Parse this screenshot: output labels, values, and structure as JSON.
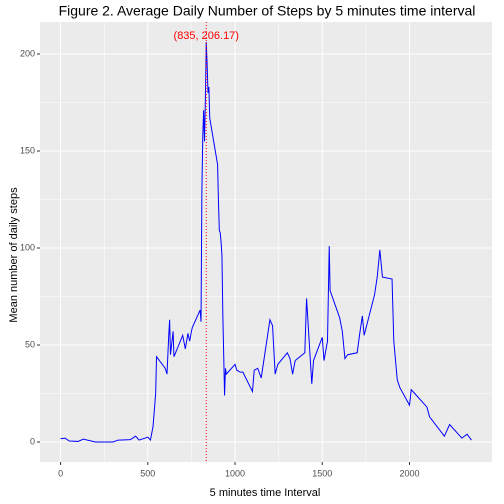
{
  "chart_data": {
    "type": "line",
    "title": "Figure 2. Average Daily Number of Steps by 5 minutes time interval",
    "x_label": "5 minutes time Interval",
    "y_label": "Mean number of daily steps",
    "x": [
      0,
      25,
      50,
      100,
      130,
      200,
      300,
      330,
      400,
      430,
      450,
      500,
      515,
      530,
      545,
      550,
      600,
      610,
      620,
      625,
      630,
      645,
      650,
      700,
      715,
      730,
      740,
      750,
      755,
      800,
      805,
      810,
      815,
      820,
      825,
      830,
      835,
      840,
      845,
      850,
      855,
      900,
      905,
      910,
      915,
      920,
      925,
      930,
      935,
      940,
      945,
      950,
      1000,
      1010,
      1030,
      1045,
      1100,
      1110,
      1130,
      1150,
      1200,
      1215,
      1230,
      1245,
      1300,
      1315,
      1330,
      1345,
      1400,
      1410,
      1440,
      1450,
      1500,
      1510,
      1530,
      1540,
      1545,
      1600,
      1615,
      1630,
      1645,
      1700,
      1715,
      1730,
      1740,
      1800,
      1815,
      1830,
      1845,
      1900,
      1910,
      1930,
      1945,
      2000,
      2010,
      2030,
      2100,
      2115,
      2200,
      2230,
      2300,
      2330,
      2355
    ],
    "values": [
      1.7,
      2,
      0.5,
      0.3,
      1.5,
      0,
      0,
      1,
      1.2,
      3,
      1,
      2.5,
      1,
      8,
      25,
      44,
      38,
      35,
      55,
      63,
      45,
      57,
      44,
      55,
      48,
      56,
      52,
      57,
      59,
      68,
      62,
      130,
      157,
      171,
      155,
      177,
      206.17,
      195,
      180,
      183,
      167,
      143,
      124,
      109,
      108,
      103,
      96,
      66,
      45,
      24,
      38,
      35,
      40,
      37,
      36,
      36,
      26,
      37,
      38,
      33,
      63,
      60,
      35,
      40,
      46,
      43,
      35,
      42,
      46,
      74,
      30,
      42,
      54,
      42,
      52,
      101,
      78,
      64,
      57,
      43,
      45,
      46,
      56,
      65,
      55,
      76,
      85,
      99,
      85,
      84,
      52,
      32,
      28,
      19,
      27,
      25,
      18,
      13,
      3,
      9,
      2,
      4,
      1
    ],
    "color": "#0000ff",
    "vline": {
      "x": 835,
      "color": "#ff0000"
    },
    "annotation": {
      "text": "(835, 206.17)",
      "x": 835,
      "y": 206.17,
      "color": "#ff0000"
    },
    "xlim": [
      -118,
      2473
    ],
    "ylim": [
      -10.3,
      216.5
    ],
    "xticks": [
      0,
      500,
      1000,
      1500,
      2000
    ],
    "yticks": [
      0,
      50,
      100,
      150,
      200
    ],
    "grid": true
  }
}
